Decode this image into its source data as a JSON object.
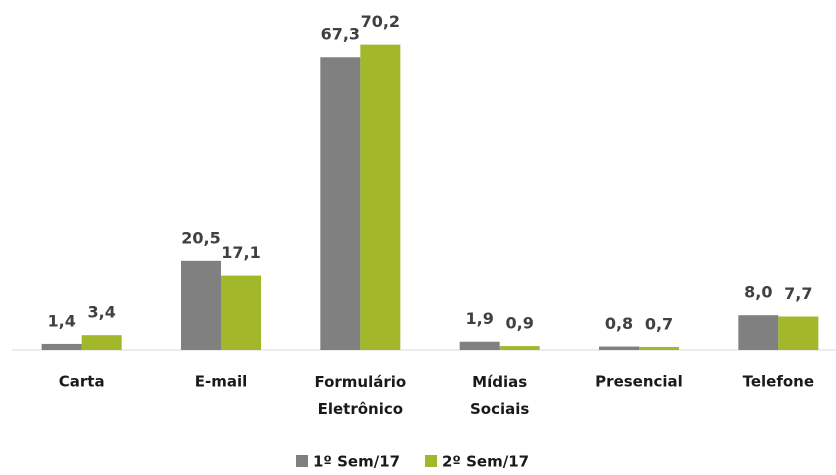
{
  "chart_data": {
    "type": "bar",
    "categories": [
      "Carta",
      "E-mail",
      "Formulário Eletrônico",
      "Mídias Sociais",
      "Presencial",
      "Telefone"
    ],
    "series": [
      {
        "name": "1º Sem/17",
        "color": "#808080",
        "values": [
          1.4,
          20.5,
          67.3,
          1.9,
          0.8,
          8.0
        ],
        "value_labels": [
          "1,4",
          "20,5",
          "67,3",
          "1,9",
          "0,8",
          "8,0"
        ]
      },
      {
        "name": "2º Sem/17",
        "color": "#a2b72a",
        "values": [
          3.4,
          17.1,
          70.2,
          0.9,
          0.7,
          7.7
        ],
        "value_labels": [
          "3,4",
          "17,1",
          "70,2",
          "0,9",
          "0,7",
          "7,7"
        ]
      }
    ],
    "ylim": [
      0,
      80
    ],
    "legend": "bottom"
  }
}
